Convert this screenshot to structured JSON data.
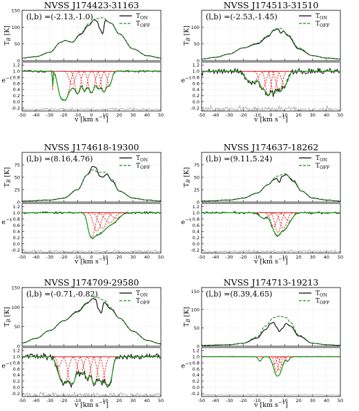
{
  "colors": {
    "on": "#000000",
    "off": "#1a8a1a",
    "fit": "#e01010",
    "residual": "#999999",
    "comp_fit": "#1a9e1a"
  },
  "chart_data": [
    {
      "type": "line",
      "title": "NVSS J174423-31163",
      "coords": "(l,b) =(-2.13,-1.0)",
      "xlabel": "v [km s⁻¹]",
      "top": {
        "ylabel": "T₂ [K]",
        "ylim": [
          0,
          150
        ],
        "yticks": [
          0,
          50,
          100,
          150
        ],
        "series": [
          {
            "name": "T_ON"
          },
          {
            "name": "T_OFF"
          }
        ],
        "on_pts": [
          [
            -50,
            8
          ],
          [
            -40,
            12
          ],
          [
            -30,
            25
          ],
          [
            -22,
            55
          ],
          [
            -19,
            60
          ],
          [
            -14,
            55
          ],
          [
            -8,
            78
          ],
          [
            -2,
            105
          ],
          [
            2,
            122
          ],
          [
            4,
            118
          ],
          [
            6,
            95
          ],
          [
            8,
            80
          ],
          [
            10,
            120
          ],
          [
            14,
            112
          ],
          [
            20,
            80
          ],
          [
            30,
            35
          ],
          [
            40,
            15
          ],
          [
            50,
            8
          ]
        ],
        "off_pts": [
          [
            -50,
            8
          ],
          [
            -40,
            12
          ],
          [
            -30,
            25
          ],
          [
            -22,
            55
          ],
          [
            -19,
            60
          ],
          [
            -14,
            55
          ],
          [
            -8,
            80
          ],
          [
            -2,
            110
          ],
          [
            3,
            125
          ],
          [
            8,
            128
          ],
          [
            14,
            112
          ],
          [
            20,
            80
          ],
          [
            30,
            35
          ],
          [
            40,
            15
          ],
          [
            50,
            8
          ]
        ]
      },
      "bottom": {
        "ylabel": "e⁻ᴛ",
        "ylim": [
          -0.3,
          1.3
        ],
        "yticks": [
          -0.2,
          0.0,
          0.2,
          0.4,
          0.6,
          0.8,
          1.0,
          1.2
        ],
        "comps": [
          [
            -28,
            1.0,
            0.2
          ],
          [
            -20,
            3.0,
            2.5
          ],
          [
            -14,
            0.6,
            1.8
          ],
          [
            -10,
            1.3,
            1.6
          ],
          [
            -5,
            1.0,
            1.6
          ],
          [
            0,
            1.2,
            1.8
          ],
          [
            5,
            0.8,
            1.5
          ],
          [
            9,
            1.1,
            1.6
          ],
          [
            13,
            0.6,
            1.5
          ]
        ]
      }
    },
    {
      "type": "line",
      "title": "NVSS J174513-31510",
      "coords": "(l,b) =(-2.53,-1.45)",
      "xlabel": "v [km s⁻¹]",
      "top": {
        "ylabel": "T₂ [K]",
        "ylim": [
          0,
          150
        ],
        "yticks": [
          0,
          50,
          100
        ],
        "series": [
          {
            "name": "T_ON"
          },
          {
            "name": "T_OFF"
          }
        ],
        "on_pts": [
          [
            -50,
            5
          ],
          [
            -40,
            10
          ],
          [
            -30,
            20
          ],
          [
            -20,
            38
          ],
          [
            -10,
            50
          ],
          [
            -2,
            72
          ],
          [
            2,
            90
          ],
          [
            5,
            95
          ],
          [
            7,
            82
          ],
          [
            9,
            88
          ],
          [
            12,
            75
          ],
          [
            20,
            35
          ],
          [
            30,
            15
          ],
          [
            40,
            8
          ],
          [
            50,
            5
          ]
        ],
        "off_pts": [
          [
            -50,
            5
          ],
          [
            -40,
            10
          ],
          [
            -30,
            20
          ],
          [
            -20,
            38
          ],
          [
            -10,
            52
          ],
          [
            -2,
            75
          ],
          [
            3,
            95
          ],
          [
            7,
            96
          ],
          [
            12,
            78
          ],
          [
            20,
            38
          ],
          [
            30,
            15
          ],
          [
            40,
            8
          ],
          [
            50,
            5
          ]
        ]
      },
      "bottom": {
        "ylabel": "e⁻ᴛ",
        "ylim": [
          -0.3,
          1.3
        ],
        "yticks": [
          -0.2,
          0.0,
          0.2,
          0.4,
          0.6,
          0.8,
          1.0,
          1.2
        ],
        "comps": [
          [
            -14,
            0.5,
            3.5
          ],
          [
            -6,
            0.8,
            2.0
          ],
          [
            -2,
            1.5,
            1.5
          ],
          [
            2,
            1.2,
            1.5
          ],
          [
            6,
            1.0,
            1.8
          ],
          [
            10,
            0.6,
            2.0
          ]
        ]
      }
    },
    {
      "type": "line",
      "title": "NVSS J174618-19300",
      "coords": "(l,b) =(8.16,4.76)",
      "xlabel": "v [km s⁻¹]",
      "top": {
        "ylabel": "T₂ [K]",
        "ylim": [
          0,
          100
        ],
        "yticks": [
          0,
          25,
          50,
          75
        ],
        "series": [
          {
            "name": "T_ON"
          },
          {
            "name": "T_OFF"
          }
        ],
        "on_pts": [
          [
            -50,
            2
          ],
          [
            -30,
            4
          ],
          [
            -20,
            8
          ],
          [
            -10,
            25
          ],
          [
            -3,
            55
          ],
          [
            1,
            72
          ],
          [
            3,
            70
          ],
          [
            6,
            52
          ],
          [
            8,
            50
          ],
          [
            11,
            56
          ],
          [
            15,
            42
          ],
          [
            20,
            22
          ],
          [
            30,
            8
          ],
          [
            40,
            4
          ],
          [
            50,
            2
          ]
        ],
        "off_pts": [
          [
            -50,
            2
          ],
          [
            -30,
            4
          ],
          [
            -20,
            8
          ],
          [
            -10,
            25
          ],
          [
            -3,
            55
          ],
          [
            1,
            65
          ],
          [
            5,
            60
          ],
          [
            10,
            60
          ],
          [
            15,
            45
          ],
          [
            20,
            22
          ],
          [
            30,
            8
          ],
          [
            40,
            4
          ],
          [
            50,
            2
          ]
        ]
      },
      "bottom": {
        "ylabel": "e⁻ᴛ",
        "ylim": [
          -0.3,
          1.3
        ],
        "yticks": [
          -0.2,
          0.0,
          0.2,
          0.4,
          0.6,
          0.8,
          1.0,
          1.2
        ],
        "comps": [
          [
            0,
            1.5,
            2.0
          ],
          [
            4,
            0.9,
            2.2
          ],
          [
            8,
            0.7,
            2.5
          ],
          [
            13,
            0.4,
            3.0
          ],
          [
            18,
            0.2,
            3.0
          ]
        ]
      }
    },
    {
      "type": "line",
      "title": "NVSS J174637-18262",
      "coords": "(l,b) =(9.11,5.24)",
      "xlabel": "v [km s⁻¹]",
      "top": {
        "ylabel": "T₂ [K]",
        "ylim": [
          0,
          100
        ],
        "yticks": [
          0,
          25,
          50,
          75
        ],
        "series": [
          {
            "name": "T_ON"
          },
          {
            "name": "T_OFF"
          }
        ],
        "on_pts": [
          [
            -50,
            2
          ],
          [
            -30,
            4
          ],
          [
            -20,
            8
          ],
          [
            -10,
            18
          ],
          [
            -2,
            35
          ],
          [
            2,
            45
          ],
          [
            4,
            48
          ],
          [
            6,
            40
          ],
          [
            8,
            52
          ],
          [
            11,
            55
          ],
          [
            16,
            42
          ],
          [
            22,
            22
          ],
          [
            30,
            8
          ],
          [
            40,
            4
          ],
          [
            50,
            2
          ]
        ],
        "off_pts": [
          [
            -50,
            2
          ],
          [
            -30,
            4
          ],
          [
            -20,
            8
          ],
          [
            -10,
            18
          ],
          [
            -2,
            35
          ],
          [
            4,
            52
          ],
          [
            10,
            57
          ],
          [
            16,
            45
          ],
          [
            22,
            22
          ],
          [
            30,
            8
          ],
          [
            40,
            4
          ],
          [
            50,
            2
          ]
        ]
      },
      "bottom": {
        "ylabel": "e⁻ᴛ",
        "ylim": [
          -0.3,
          1.3
        ],
        "yticks": [
          -0.2,
          0.0,
          0.2,
          0.4,
          0.6,
          0.8,
          1.0,
          1.2
        ],
        "comps": [
          [
            -5,
            0.2,
            3.0
          ],
          [
            2,
            0.6,
            2.0
          ],
          [
            5,
            1.0,
            1.8
          ],
          [
            9,
            0.7,
            2.2
          ],
          [
            13,
            0.3,
            2.5
          ]
        ]
      }
    },
    {
      "type": "line",
      "title": "NVSS J174709-29580",
      "coords": "(l,b) =(-0.71,-0.82)",
      "xlabel": "v [km s⁻¹]",
      "top": {
        "ylabel": "T₂ [K]",
        "ylim": [
          0,
          150
        ],
        "yticks": [
          0,
          50,
          100,
          150
        ],
        "series": [
          {
            "name": "T_ON"
          },
          {
            "name": "T_OFF"
          }
        ],
        "on_pts": [
          [
            -50,
            8
          ],
          [
            -40,
            20
          ],
          [
            -30,
            40
          ],
          [
            -20,
            65
          ],
          [
            -10,
            88
          ],
          [
            -3,
            110
          ],
          [
            1,
            122
          ],
          [
            3,
            120
          ],
          [
            5,
            95
          ],
          [
            7,
            85
          ],
          [
            9,
            112
          ],
          [
            14,
            95
          ],
          [
            20,
            72
          ],
          [
            30,
            38
          ],
          [
            40,
            15
          ],
          [
            50,
            6
          ]
        ],
        "off_pts": [
          [
            -50,
            8
          ],
          [
            -40,
            20
          ],
          [
            -30,
            40
          ],
          [
            -20,
            65
          ],
          [
            -10,
            90
          ],
          [
            -3,
            112
          ],
          [
            3,
            126
          ],
          [
            9,
            118
          ],
          [
            14,
            98
          ],
          [
            20,
            72
          ],
          [
            30,
            38
          ],
          [
            40,
            15
          ],
          [
            50,
            6
          ]
        ]
      },
      "bottom": {
        "ylabel": "e⁻ᴛ",
        "ylim": [
          -0.3,
          1.3
        ],
        "yticks": [
          -0.2,
          0.0,
          0.2,
          0.4,
          0.6,
          0.8,
          1.0,
          1.2
        ],
        "comps": [
          [
            -24,
            0.4,
            1.8
          ],
          [
            -20,
            2.0,
            2.2
          ],
          [
            -14,
            2.2,
            2.0
          ],
          [
            -8,
            0.8,
            1.8
          ],
          [
            -3,
            1.2,
            1.8
          ],
          [
            2,
            2.0,
            1.6
          ],
          [
            7,
            1.6,
            2.0
          ],
          [
            12,
            2.5,
            2.0
          ]
        ]
      }
    },
    {
      "type": "line",
      "title": "NVSS J174713-19213",
      "coords": "(l,b) =(8.39,4.65)",
      "xlabel": "v [km s⁻¹]",
      "top": {
        "ylabel": "T₂ [K]",
        "ylim": [
          0,
          160
        ],
        "yticks": [
          0,
          50,
          100,
          150
        ],
        "series": [
          {
            "name": "T_ON"
          },
          {
            "name": "T_OFF"
          }
        ],
        "on_pts": [
          [
            -50,
            2
          ],
          [
            -30,
            4
          ],
          [
            -20,
            8
          ],
          [
            -10,
            22
          ],
          [
            -4,
            45
          ],
          [
            0,
            62
          ],
          [
            2,
            65
          ],
          [
            4,
            52
          ],
          [
            6,
            40
          ],
          [
            8,
            48
          ],
          [
            11,
            62
          ],
          [
            14,
            55
          ],
          [
            20,
            28
          ],
          [
            30,
            8
          ],
          [
            40,
            4
          ],
          [
            50,
            2
          ]
        ],
        "off_pts": [
          [
            -50,
            2
          ],
          [
            -30,
            4
          ],
          [
            -20,
            8
          ],
          [
            -10,
            25
          ],
          [
            -4,
            55
          ],
          [
            2,
            78
          ],
          [
            6,
            82
          ],
          [
            11,
            78
          ],
          [
            14,
            65
          ],
          [
            20,
            30
          ],
          [
            30,
            8
          ],
          [
            40,
            4
          ],
          [
            50,
            2
          ]
        ]
      },
      "bottom": {
        "ylabel": "e⁻ᴛ",
        "ylim": [
          -0.3,
          1.3
        ],
        "yticks": [
          -0.2,
          0.0,
          0.2,
          0.4,
          0.6,
          0.8,
          1.0,
          1.2
        ],
        "comps": [
          [
            -8,
            0.15,
            1.2
          ],
          [
            2,
            0.3,
            1.5
          ],
          [
            4,
            0.7,
            1.2
          ],
          [
            6,
            0.6,
            1.2
          ],
          [
            8,
            0.3,
            1.4
          ],
          [
            12,
            0.15,
            1.2
          ]
        ]
      }
    }
  ]
}
